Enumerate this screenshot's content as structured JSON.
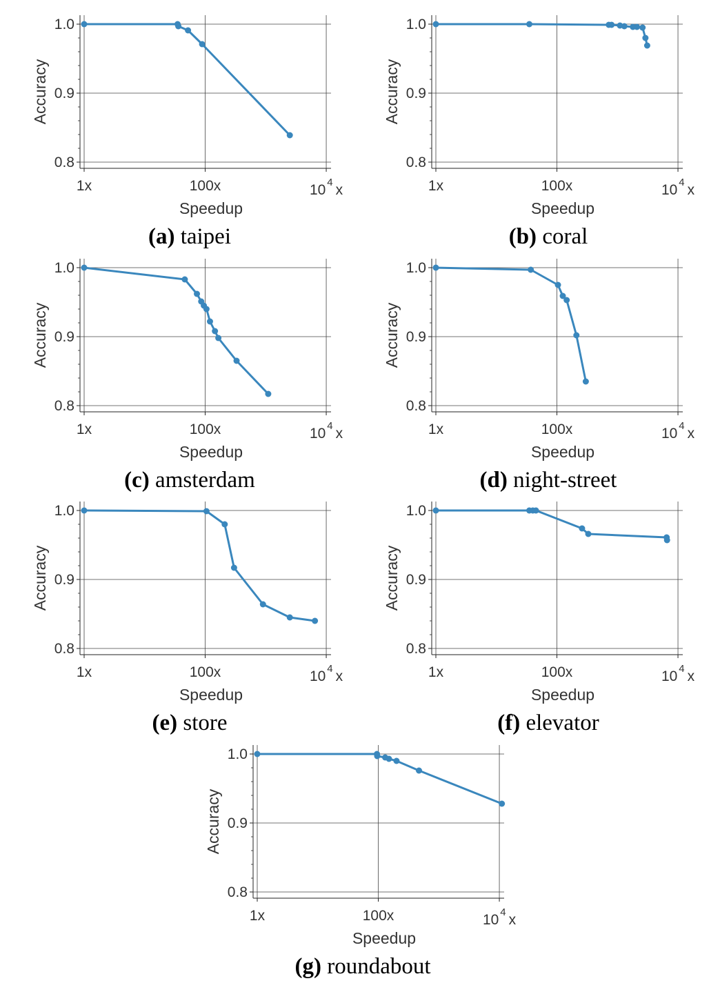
{
  "series_color": "#3a87bd",
  "axes_labels": {
    "xlabel": "Speedup",
    "ylabel": "Accuracy"
  },
  "x_ticks": [
    {
      "x": 1,
      "label": "1x"
    },
    {
      "x": 100,
      "label": "100x"
    },
    {
      "x": 10000,
      "label": "10",
      "sup": "4",
      "suffix": "x"
    }
  ],
  "y_ticks": [
    {
      "y": 0.8,
      "label": "0.8"
    },
    {
      "y": 0.9,
      "label": "0.9"
    },
    {
      "y": 1.0,
      "label": "1.0"
    }
  ],
  "chart_data": [
    {
      "type": "line",
      "caption_letter": "(a)",
      "caption_name": "taipei",
      "xlabel": "Speedup",
      "ylabel": "Accuracy",
      "xscale": "log",
      "xlim": [
        1,
        12000
      ],
      "ylim": [
        0.79,
        1.0
      ],
      "grid": true,
      "x": [
        1,
        35,
        36,
        52,
        89,
        2500
      ],
      "y": [
        1.0,
        1.0,
        0.997,
        0.991,
        0.971,
        0.839
      ]
    },
    {
      "type": "line",
      "caption_letter": "(b)",
      "caption_name": "coral",
      "xlabel": "Speedup",
      "ylabel": "Accuracy",
      "xscale": "log",
      "xlim": [
        1,
        12000
      ],
      "ylim": [
        0.79,
        1.0
      ],
      "grid": true,
      "x": [
        1,
        35,
        720,
        800,
        1100,
        1300,
        1800,
        2100,
        2600,
        2900,
        3100
      ],
      "y": [
        1.0,
        1.0,
        0.999,
        0.999,
        0.998,
        0.997,
        0.996,
        0.996,
        0.995,
        0.98,
        0.969
      ]
    },
    {
      "type": "line",
      "caption_letter": "(c)",
      "caption_name": "amsterdam",
      "xlabel": "Speedup",
      "ylabel": "Accuracy",
      "xscale": "log",
      "xlim": [
        1,
        12000
      ],
      "ylim": [
        0.79,
        1.0
      ],
      "grid": true,
      "x": [
        1,
        46,
        73,
        86,
        95,
        105,
        120,
        145,
        165,
        330,
        1100
      ],
      "y": [
        1.0,
        0.983,
        0.962,
        0.951,
        0.945,
        0.94,
        0.922,
        0.908,
        0.898,
        0.865,
        0.817
      ]
    },
    {
      "type": "line",
      "caption_letter": "(d)",
      "caption_name": "night-street",
      "xlabel": "Speedup",
      "ylabel": "Accuracy",
      "xscale": "log",
      "xlim": [
        1,
        12000
      ],
      "ylim": [
        0.79,
        1.0
      ],
      "grid": true,
      "x": [
        1,
        37,
        104,
        125,
        145,
        210,
        300
      ],
      "y": [
        1.0,
        0.997,
        0.975,
        0.959,
        0.953,
        0.902,
        0.835
      ]
    },
    {
      "type": "line",
      "caption_letter": "(e)",
      "caption_name": "store",
      "xlabel": "Speedup",
      "ylabel": "Accuracy",
      "xscale": "log",
      "xlim": [
        1,
        12000
      ],
      "ylim": [
        0.79,
        1.0
      ],
      "grid": true,
      "x": [
        1,
        105,
        210,
        300,
        900,
        2500,
        6500
      ],
      "y": [
        1.0,
        0.999,
        0.98,
        0.917,
        0.864,
        0.845,
        0.84
      ]
    },
    {
      "type": "line",
      "caption_letter": "(f)",
      "caption_name": "elevator",
      "xlabel": "Speedup",
      "ylabel": "Accuracy",
      "xscale": "log",
      "xlim": [
        1,
        12000
      ],
      "ylim": [
        0.79,
        1.0
      ],
      "grid": true,
      "x": [
        1,
        35,
        40,
        45,
        260,
        330,
        6500,
        6600
      ],
      "y": [
        1.0,
        1.0,
        1.0,
        1.0,
        0.974,
        0.966,
        0.961,
        0.957
      ]
    },
    {
      "type": "line",
      "caption_letter": "(g)",
      "caption_name": "roundabout",
      "xlabel": "Speedup",
      "ylabel": "Accuracy",
      "xscale": "log",
      "xlim": [
        1,
        12000
      ],
      "ylim": [
        0.79,
        1.0
      ],
      "grid": true,
      "x": [
        1,
        95,
        96,
        130,
        150,
        200,
        470,
        11000
      ],
      "y": [
        1.0,
        1.0,
        0.997,
        0.995,
        0.993,
        0.99,
        0.976,
        0.928
      ]
    }
  ]
}
